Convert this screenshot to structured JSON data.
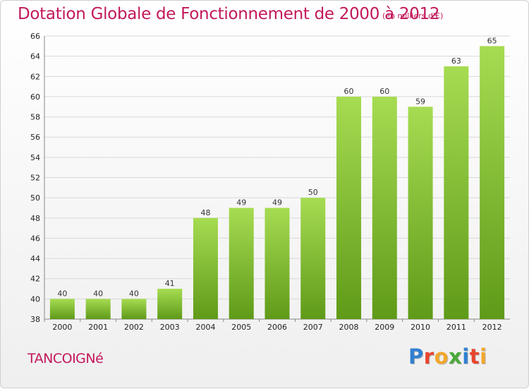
{
  "header": {
    "title": "Dotation Globale de Fonctionnement de 2000 à 2012",
    "subtitle": "(en milliers d'€)"
  },
  "footer": {
    "place": "TANCOIGNé",
    "brand_letters": [
      "P",
      "r",
      "o",
      "x",
      "i",
      "t",
      "i"
    ],
    "brand_colors": [
      "#2f7fd1",
      "#e8462e",
      "#f2a72c",
      "#4aa83a",
      "#2f7fd1",
      "#e8462e",
      "#f2a72c"
    ]
  },
  "colors": {
    "bar": "#86c232",
    "bar_light": "#a6dc52",
    "bar_dark": "#5f9a18",
    "grid": "#d8d8d8"
  },
  "chart_data": {
    "type": "bar",
    "categories": [
      "2000",
      "2001",
      "2002",
      "2003",
      "2004",
      "2005",
      "2006",
      "2007",
      "2008",
      "2009",
      "2010",
      "2011",
      "2012"
    ],
    "values": [
      40,
      40,
      40,
      41,
      48,
      49,
      49,
      50,
      60,
      60,
      59,
      63,
      65
    ],
    "ylim": [
      38,
      66
    ],
    "yticks": [
      38,
      40,
      42,
      44,
      46,
      48,
      50,
      52,
      54,
      56,
      58,
      60,
      62,
      64,
      66
    ],
    "grid": true,
    "title": "Dotation Globale de Fonctionnement de 2000 à 2012",
    "xlabel": "",
    "ylabel": ""
  }
}
